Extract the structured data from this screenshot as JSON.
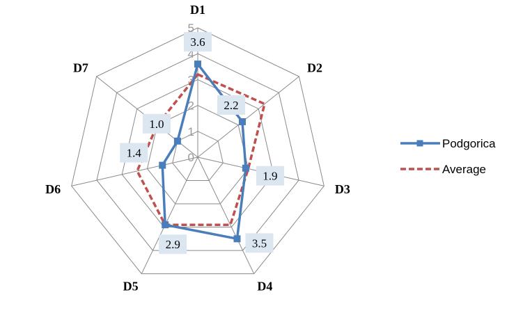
{
  "chart_data": {
    "type": "radar",
    "categories": [
      "D1",
      "D2",
      "D3",
      "D4",
      "D5",
      "D6",
      "D7"
    ],
    "rlim": [
      0,
      5
    ],
    "ticks": [
      "0",
      "1",
      "2",
      "3",
      "4",
      "5"
    ],
    "grid": true,
    "legend_position": "right",
    "series": [
      {
        "name": "Podgorica",
        "values": [
          3.6,
          2.2,
          1.9,
          3.5,
          2.9,
          1.4,
          1.0
        ],
        "data_labels": [
          "3.6",
          "2.2",
          "1.9",
          "3.5",
          "2.9",
          "1.4",
          "1.0"
        ],
        "color": "#4a7ebb",
        "style": "solid",
        "marker": "square"
      },
      {
        "name": "Average",
        "values": [
          3.2,
          3.3,
          2.0,
          2.9,
          2.9,
          2.4,
          2.0
        ],
        "color": "#c0504d",
        "style": "dashed",
        "marker": "none"
      }
    ]
  }
}
